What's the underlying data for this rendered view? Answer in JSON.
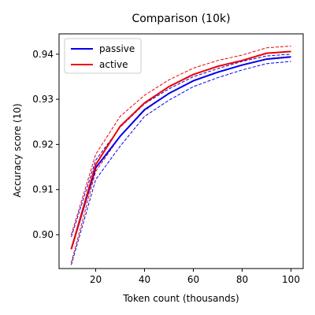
{
  "chart_data": {
    "type": "line",
    "title": "Comparison (10k)",
    "xlabel": "Token count (thousands)",
    "ylabel": "Accuracy score (10)",
    "xlim": [
      5,
      105
    ],
    "ylim": [
      0.8925,
      0.9445
    ],
    "xticks": [
      20,
      40,
      60,
      80,
      100
    ],
    "yticks": [
      0.9,
      0.91,
      0.92,
      0.93,
      0.94
    ],
    "ytick_format": 2,
    "grid": false,
    "legend_position": "top-left",
    "x": [
      10,
      20,
      30,
      40,
      50,
      60,
      70,
      80,
      90,
      100
    ],
    "series": [
      {
        "name": "passive",
        "color": "#0000ee",
        "values": [
          0.8968,
          0.9148,
          0.9218,
          0.9277,
          0.9313,
          0.9341,
          0.936,
          0.9376,
          0.9389,
          0.9394
        ],
        "upper": [
          0.8995,
          0.9165,
          0.9238,
          0.929,
          0.9323,
          0.935,
          0.9368,
          0.9384,
          0.9396,
          0.94
        ],
        "lower": [
          0.8933,
          0.9122,
          0.9196,
          0.9262,
          0.9298,
          0.9328,
          0.9348,
          0.9365,
          0.9379,
          0.9384
        ]
      },
      {
        "name": "active",
        "color": "#ee0000",
        "values": [
          0.8968,
          0.9155,
          0.924,
          0.9292,
          0.9328,
          0.9355,
          0.9373,
          0.9386,
          0.9402,
          0.9406
        ],
        "upper": [
          0.9,
          0.9178,
          0.9262,
          0.9309,
          0.9343,
          0.9369,
          0.9386,
          0.9398,
          0.9414,
          0.9418
        ],
        "lower": [
          0.8938,
          0.914,
          0.9218,
          0.9275,
          0.9313,
          0.9342,
          0.9361,
          0.9375,
          0.939,
          0.9395
        ]
      }
    ]
  }
}
